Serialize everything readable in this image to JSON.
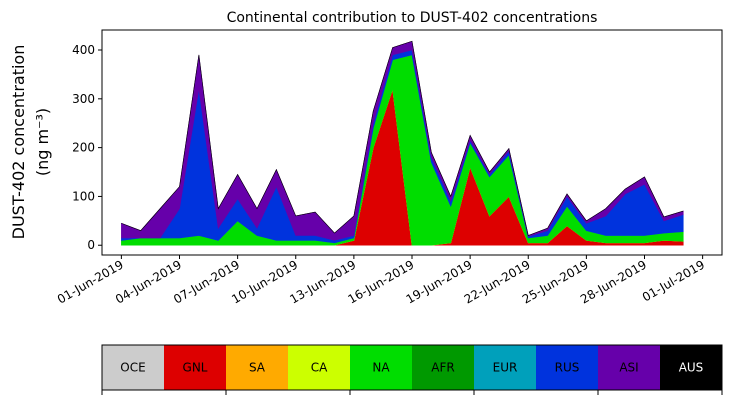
{
  "chart_data": {
    "type": "stacked-area",
    "title": "Continental contribution to DUST-402 concentrations",
    "ylabel": [
      "DUST-402 concentration",
      "(ng m⁻³)"
    ],
    "x": [
      "2019-06-01",
      "2019-06-02",
      "2019-06-03",
      "2019-06-04",
      "2019-06-05",
      "2019-06-06",
      "2019-06-07",
      "2019-06-08",
      "2019-06-09",
      "2019-06-10",
      "2019-06-11",
      "2019-06-12",
      "2019-06-13",
      "2019-06-14",
      "2019-06-15",
      "2019-06-16",
      "2019-06-17",
      "2019-06-18",
      "2019-06-19",
      "2019-06-20",
      "2019-06-21",
      "2019-06-22",
      "2019-06-23",
      "2019-06-24",
      "2019-06-25",
      "2019-06-26",
      "2019-06-27",
      "2019-06-28",
      "2019-06-29",
      "2019-06-30"
    ],
    "xlim": [
      "2019-05-31",
      "2019-07-02"
    ],
    "xticks": [
      {
        "value": "2019-06-01",
        "label": "01-Jun-2019"
      },
      {
        "value": "2019-06-04",
        "label": "04-Jun-2019"
      },
      {
        "value": "2019-06-07",
        "label": "07-Jun-2019"
      },
      {
        "value": "2019-06-10",
        "label": "10-Jun-2019"
      },
      {
        "value": "2019-06-13",
        "label": "13-Jun-2019"
      },
      {
        "value": "2019-06-16",
        "label": "16-Jun-2019"
      },
      {
        "value": "2019-06-19",
        "label": "19-Jun-2019"
      },
      {
        "value": "2019-06-22",
        "label": "22-Jun-2019"
      },
      {
        "value": "2019-06-25",
        "label": "25-Jun-2019"
      },
      {
        "value": "2019-06-28",
        "label": "28-Jun-2019"
      },
      {
        "value": "2019-07-01",
        "label": "01-Jul-2019"
      }
    ],
    "ylim": [
      -20,
      441
    ],
    "yticks": [
      0,
      100,
      200,
      300,
      400
    ],
    "series": [
      {
        "name": "OCE",
        "color": "#cccccc",
        "values": [
          0,
          0,
          0,
          0,
          0,
          0,
          0,
          0,
          0,
          0,
          0,
          0,
          0,
          0,
          0,
          0,
          0,
          0,
          0,
          0,
          0,
          0,
          0,
          0,
          0,
          0,
          0,
          0,
          0,
          0
        ]
      },
      {
        "name": "GNL",
        "color": "#dd0000",
        "values": [
          0,
          0,
          0,
          0,
          0,
          0,
          0,
          0,
          0,
          0,
          0,
          0,
          10,
          200,
          320,
          0,
          0,
          5,
          160,
          60,
          100,
          5,
          5,
          40,
          10,
          5,
          5,
          5,
          10,
          8
        ]
      },
      {
        "name": "SA",
        "color": "#ffaa00",
        "values": [
          0,
          0,
          0,
          0,
          0,
          0,
          0,
          0,
          0,
          0,
          0,
          0,
          0,
          0,
          0,
          0,
          0,
          0,
          0,
          0,
          0,
          0,
          0,
          0,
          0,
          0,
          0,
          0,
          0,
          0
        ]
      },
      {
        "name": "CA",
        "color": "#ccff00",
        "values": [
          0,
          0,
          0,
          0,
          0,
          0,
          0,
          0,
          0,
          0,
          0,
          0,
          0,
          0,
          0,
          0,
          0,
          0,
          0,
          0,
          0,
          0,
          0,
          0,
          0,
          0,
          0,
          0,
          0,
          0
        ]
      },
      {
        "name": "NA",
        "color": "#00dd00",
        "values": [
          10,
          15,
          15,
          15,
          20,
          10,
          50,
          20,
          10,
          10,
          10,
          5,
          5,
          40,
          60,
          390,
          170,
          75,
          50,
          80,
          85,
          10,
          15,
          40,
          20,
          15,
          15,
          15,
          15,
          20
        ]
      },
      {
        "name": "AFR",
        "color": "#009900",
        "values": [
          0,
          0,
          0,
          0,
          0,
          0,
          0,
          0,
          0,
          0,
          0,
          0,
          0,
          0,
          0,
          0,
          0,
          0,
          0,
          0,
          0,
          0,
          0,
          0,
          0,
          0,
          0,
          0,
          0,
          0
        ]
      },
      {
        "name": "EUR",
        "color": "#00a0bb",
        "values": [
          0,
          0,
          0,
          0,
          0,
          0,
          0,
          0,
          0,
          0,
          0,
          0,
          0,
          0,
          0,
          0,
          0,
          0,
          0,
          0,
          0,
          0,
          0,
          0,
          0,
          0,
          0,
          0,
          0,
          0
        ]
      },
      {
        "name": "RUS",
        "color": "#0033dd",
        "values": [
          5,
          0,
          0,
          60,
          300,
          25,
          45,
          15,
          110,
          10,
          10,
          5,
          5,
          10,
          10,
          10,
          10,
          10,
          5,
          5,
          8,
          3,
          10,
          20,
          15,
          40,
          85,
          105,
          25,
          35
        ]
      },
      {
        "name": "ASI",
        "color": "#6600aa",
        "values": [
          30,
          15,
          60,
          45,
          70,
          40,
          50,
          40,
          35,
          40,
          48,
          15,
          40,
          25,
          15,
          18,
          10,
          10,
          10,
          5,
          5,
          2,
          5,
          5,
          5,
          15,
          10,
          15,
          8,
          7
        ]
      },
      {
        "name": "AUS",
        "color": "#000000",
        "values": [
          0,
          0,
          0,
          0,
          0,
          0,
          0,
          0,
          0,
          0,
          0,
          0,
          0,
          0,
          0,
          0,
          0,
          0,
          0,
          0,
          0,
          0,
          0,
          0,
          0,
          0,
          0,
          0,
          0,
          0
        ]
      }
    ]
  }
}
